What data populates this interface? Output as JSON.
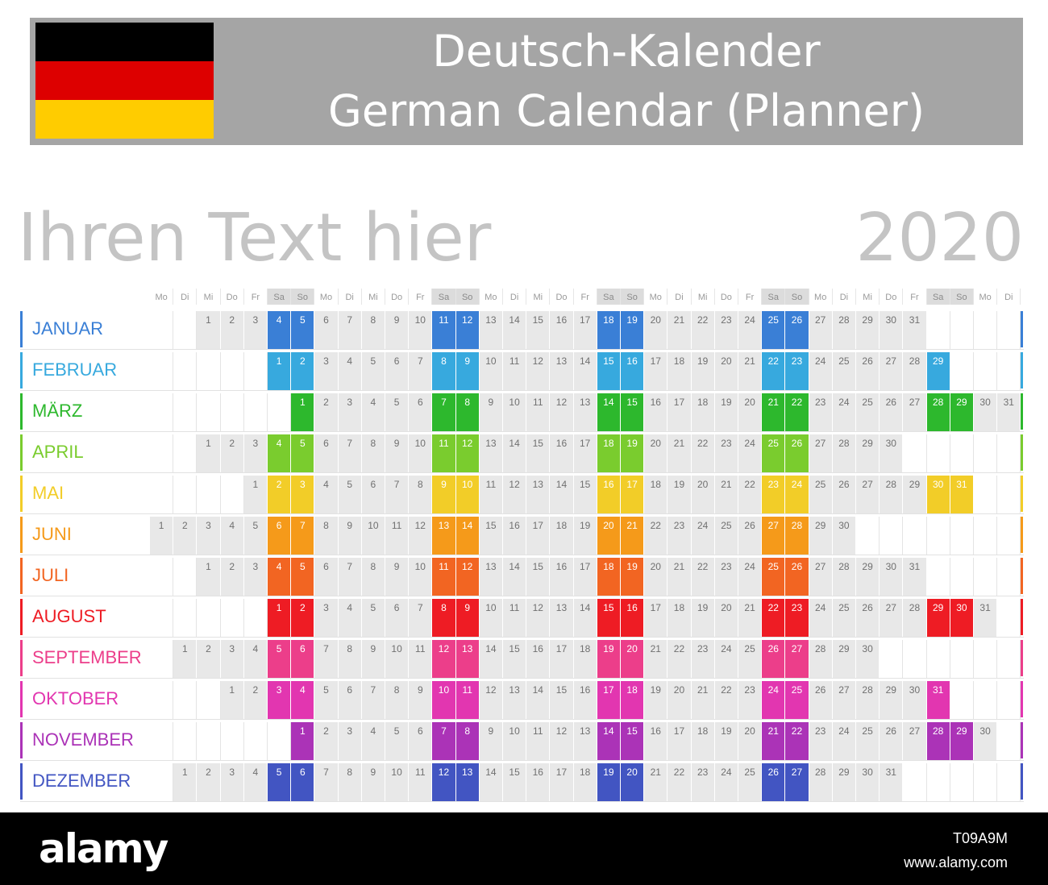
{
  "header": {
    "title_de": "Deutsch-Kalender",
    "title_en": "German Calendar (Planner)",
    "flag_colors": [
      "#000000",
      "#dd0000",
      "#ffcc00"
    ]
  },
  "subtitle": "Ihren Text hier",
  "year": "2020",
  "weekday_labels": [
    "Mo",
    "Di",
    "Mi",
    "Do",
    "Fr",
    "Sa",
    "So",
    "Mo",
    "Di",
    "Mi",
    "Do",
    "Fr",
    "Sa",
    "So",
    "Mo",
    "Di",
    "Mi",
    "Do",
    "Fr",
    "Sa",
    "So",
    "Mo",
    "Di",
    "Mi",
    "Do",
    "Fr",
    "Sa",
    "So",
    "Mo",
    "Di",
    "Mi",
    "Do",
    "Fr",
    "Sa",
    "So",
    "Mo",
    "Di"
  ],
  "months": [
    {
      "name": "JANUAR",
      "offset": 2,
      "days": 31,
      "color": "#3a7fd6"
    },
    {
      "name": "FEBRUAR",
      "offset": 5,
      "days": 29,
      "color": "#37a9de"
    },
    {
      "name": "MÄRZ",
      "offset": 6,
      "days": 31,
      "color": "#2db82d"
    },
    {
      "name": "APRIL",
      "offset": 2,
      "days": 30,
      "color": "#7acc2e"
    },
    {
      "name": "MAI",
      "offset": 4,
      "days": 31,
      "color": "#f2cd28"
    },
    {
      "name": "JUNI",
      "offset": 0,
      "days": 30,
      "color": "#f59a1a"
    },
    {
      "name": "JULI",
      "offset": 2,
      "days": 31,
      "color": "#f26522"
    },
    {
      "name": "AUGUST",
      "offset": 5,
      "days": 31,
      "color": "#ee1c24"
    },
    {
      "name": "SEPTEMBER",
      "offset": 1,
      "days": 30,
      "color": "#ec3e8a"
    },
    {
      "name": "OKTOBER",
      "offset": 3,
      "days": 31,
      "color": "#e236b0"
    },
    {
      "name": "NOVEMBER",
      "offset": 6,
      "days": 30,
      "color": "#ab33b7"
    },
    {
      "name": "DEZEMBER",
      "offset": 1,
      "days": 31,
      "color": "#4255c2"
    }
  ],
  "footer": {
    "brand": "alamy",
    "image_id": "T09A9M",
    "url": "www.alamy.com"
  }
}
